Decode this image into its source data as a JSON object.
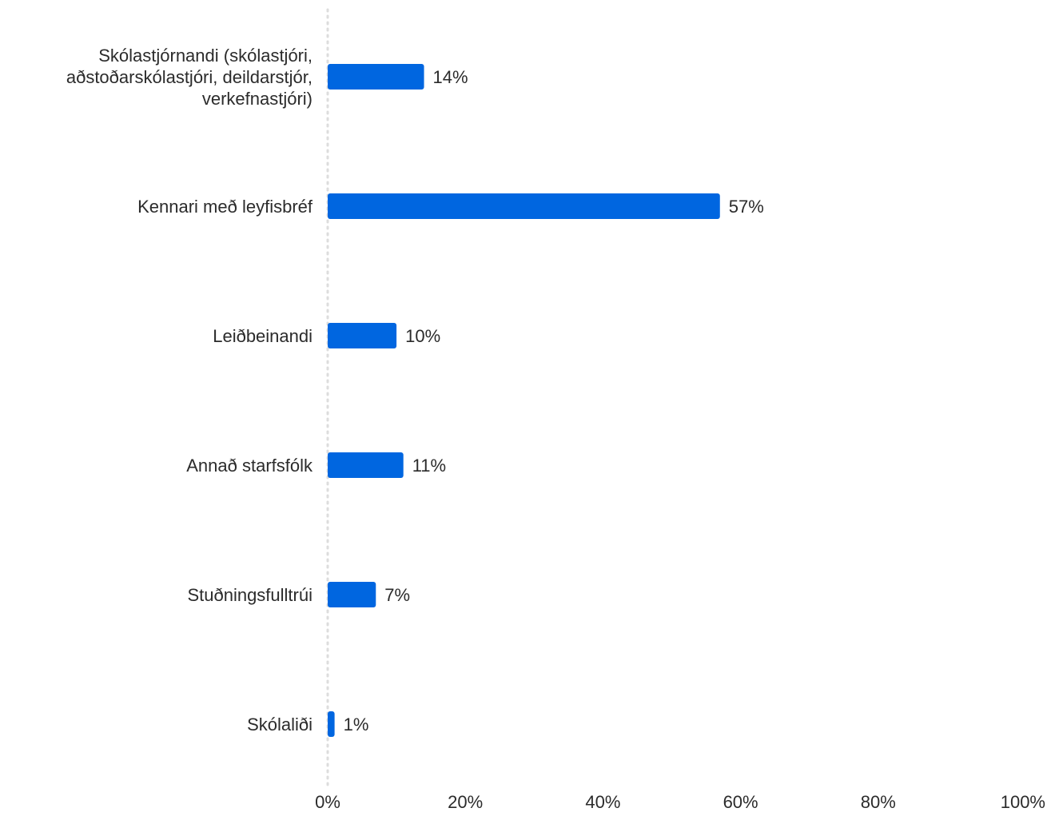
{
  "chart_data": {
    "type": "bar",
    "orientation": "horizontal",
    "categories": [
      [
        "Skólastjórnandi (skólastjóri,",
        "aðstoðarskólastjóri, deildarstjór,",
        "verkefnastjóri)"
      ],
      [
        "Kennari með leyfisbréf"
      ],
      [
        "Leiðbeinandi"
      ],
      [
        "Annað starfsfólk"
      ],
      [
        "Stuðningsfulltrúi"
      ],
      [
        "Skólaliði"
      ]
    ],
    "values": [
      14,
      57,
      10,
      11,
      7,
      1
    ],
    "value_labels": [
      "14%",
      "57%",
      "10%",
      "11%",
      "7%",
      "1%"
    ],
    "xlim": [
      0,
      100
    ],
    "x_ticks": [
      0,
      20,
      40,
      60,
      80,
      100
    ],
    "x_tick_labels": [
      "0%",
      "20%",
      "40%",
      "60%",
      "80%",
      "100%"
    ],
    "title": "",
    "xlabel": "",
    "ylabel": "",
    "grid": false,
    "legend": "none",
    "bar_color": "#0066e0",
    "axis_line_color": "#dddddd",
    "text_color": "#2b2b2b"
  }
}
